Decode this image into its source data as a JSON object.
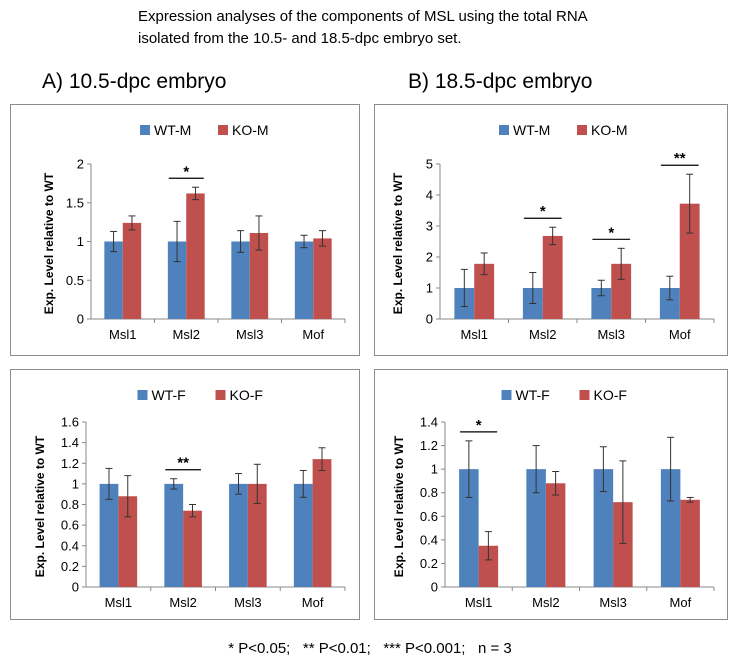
{
  "caption": {
    "line1": "Expression analyses of the components of MSL using the total RNA",
    "line2": "isolated from the 10.5- and 18.5-dpc embryo set."
  },
  "panel_titles": {
    "a": "A) 10.5-dpc embryo",
    "b": "B) 18.5-dpc embryo"
  },
  "footer": "* P<0.05;   ** P<0.01;   *** P<0.001;   n = 3",
  "colors": {
    "wt": "#4F81BD",
    "ko": "#C0504D",
    "border": "#8C8C8C",
    "axis": "#888888",
    "error": "#333333"
  },
  "chart_data": [
    {
      "id": "a-male",
      "type": "bar",
      "categories": [
        "Msl1",
        "Msl2",
        "Msl3",
        "Mof"
      ],
      "series": [
        {
          "name": "WT-M",
          "values": [
            1.0,
            1.0,
            1.0,
            1.0
          ],
          "errors": [
            0.13,
            0.26,
            0.14,
            0.08
          ]
        },
        {
          "name": "KO-M",
          "values": [
            1.24,
            1.62,
            1.11,
            1.04
          ],
          "errors": [
            0.09,
            0.08,
            0.22,
            0.1
          ]
        }
      ],
      "ylabel": "Exp. Level relative to WT",
      "yticks": [
        "0",
        "0.5",
        "1",
        "1.5",
        "2"
      ],
      "ylim": [
        0,
        2
      ],
      "legend": "top",
      "significance": [
        {
          "category": 1,
          "label": "*"
        }
      ]
    },
    {
      "id": "b-male",
      "type": "bar",
      "categories": [
        "Msl1",
        "Msl2",
        "Msl3",
        "Mof"
      ],
      "series": [
        {
          "name": "WT-M",
          "values": [
            1.0,
            1.0,
            1.0,
            1.0
          ],
          "errors": [
            0.6,
            0.5,
            0.25,
            0.38
          ]
        },
        {
          "name": "KO-M",
          "values": [
            1.78,
            2.68,
            1.78,
            3.72
          ],
          "errors": [
            0.35,
            0.28,
            0.5,
            0.95
          ]
        }
      ],
      "ylabel": "Exp. Level relative to WT",
      "yticks": [
        "0",
        "1",
        "2",
        "3",
        "4",
        "5"
      ],
      "ylim": [
        0,
        5
      ],
      "legend": "top",
      "significance": [
        {
          "category": 1,
          "label": "*"
        },
        {
          "category": 2,
          "label": "*"
        },
        {
          "category": 3,
          "label": "**"
        }
      ]
    },
    {
      "id": "a-female",
      "type": "bar",
      "categories": [
        "Msl1",
        "Msl2",
        "Msl3",
        "Mof"
      ],
      "series": [
        {
          "name": "WT-F",
          "values": [
            1.0,
            1.0,
            1.0,
            1.0
          ],
          "errors": [
            0.15,
            0.05,
            0.1,
            0.13
          ]
        },
        {
          "name": "KO-F",
          "values": [
            0.88,
            0.74,
            1.0,
            1.24
          ],
          "errors": [
            0.2,
            0.06,
            0.19,
            0.11
          ]
        }
      ],
      "ylabel": "Exp. Level relative to WT",
      "yticks": [
        "0",
        "0.2",
        "0.4",
        "0.6",
        "0.8",
        "1",
        "1.2",
        "1.4",
        "1.6"
      ],
      "ylim": [
        0,
        1.6
      ],
      "legend": "top",
      "significance": [
        {
          "category": 1,
          "label": "**"
        }
      ]
    },
    {
      "id": "b-female",
      "type": "bar",
      "categories": [
        "Msl1",
        "Msl2",
        "Msl3",
        "Mof"
      ],
      "series": [
        {
          "name": "WT-F",
          "values": [
            1.0,
            1.0,
            1.0,
            1.0
          ],
          "errors": [
            0.24,
            0.2,
            0.19,
            0.27
          ]
        },
        {
          "name": "KO-F",
          "values": [
            0.35,
            0.88,
            0.72,
            0.74
          ],
          "errors": [
            0.12,
            0.1,
            0.35,
            0.02
          ]
        }
      ],
      "ylabel": "Exp. Level relative to WT",
      "yticks": [
        "0",
        "0.2",
        "0.4",
        "0.6",
        "0.8",
        "1",
        "1.2",
        "1.4"
      ],
      "ylim": [
        0,
        1.4
      ],
      "legend": "top",
      "significance": [
        {
          "category": 0,
          "label": "*"
        }
      ]
    }
  ]
}
